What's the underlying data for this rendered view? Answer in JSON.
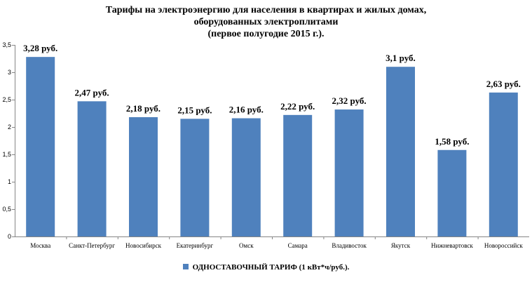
{
  "chart_data": {
    "type": "bar",
    "title": [
      "Тарифы на электроэнергию для населения в квартирах и жилых домах,",
      "оборудованных электроплитами",
      "(первое полугодие 2015 г.)."
    ],
    "categories": [
      "Москва",
      "Санкт-Петербург",
      "Новосибирск",
      "Екатеринбург",
      "Омск",
      "Самара",
      "Владивосток",
      "Якутск",
      "Нижневартовск",
      "Новороссийск"
    ],
    "series": [
      {
        "name": "ОДНОСТАВОЧНЫЙ ТАРИФ  (1 кВт*ч/руб.).",
        "values": [
          3.28,
          2.47,
          2.18,
          2.15,
          2.16,
          2.22,
          2.32,
          3.1,
          1.58,
          2.63
        ],
        "labels": [
          "3,28 руб.",
          "2,47 руб.",
          "2,18 руб.",
          "2,15 руб.",
          "2,16 руб.",
          "2,22 руб.",
          "2,32 руб.",
          "3,1 руб.",
          "1,58 руб.",
          "2,63 руб."
        ]
      }
    ],
    "ylim": [
      0,
      3.5
    ],
    "yticks": [
      0,
      0.5,
      1,
      1.5,
      2,
      2.5,
      3,
      3.5
    ],
    "ytick_labels": [
      "0",
      "0,5",
      "1",
      "1,5",
      "2",
      "2,5",
      "3",
      "3,5"
    ],
    "grid": false,
    "legend_position": "bottom",
    "colors": {
      "bar": "#4f81bd"
    }
  }
}
